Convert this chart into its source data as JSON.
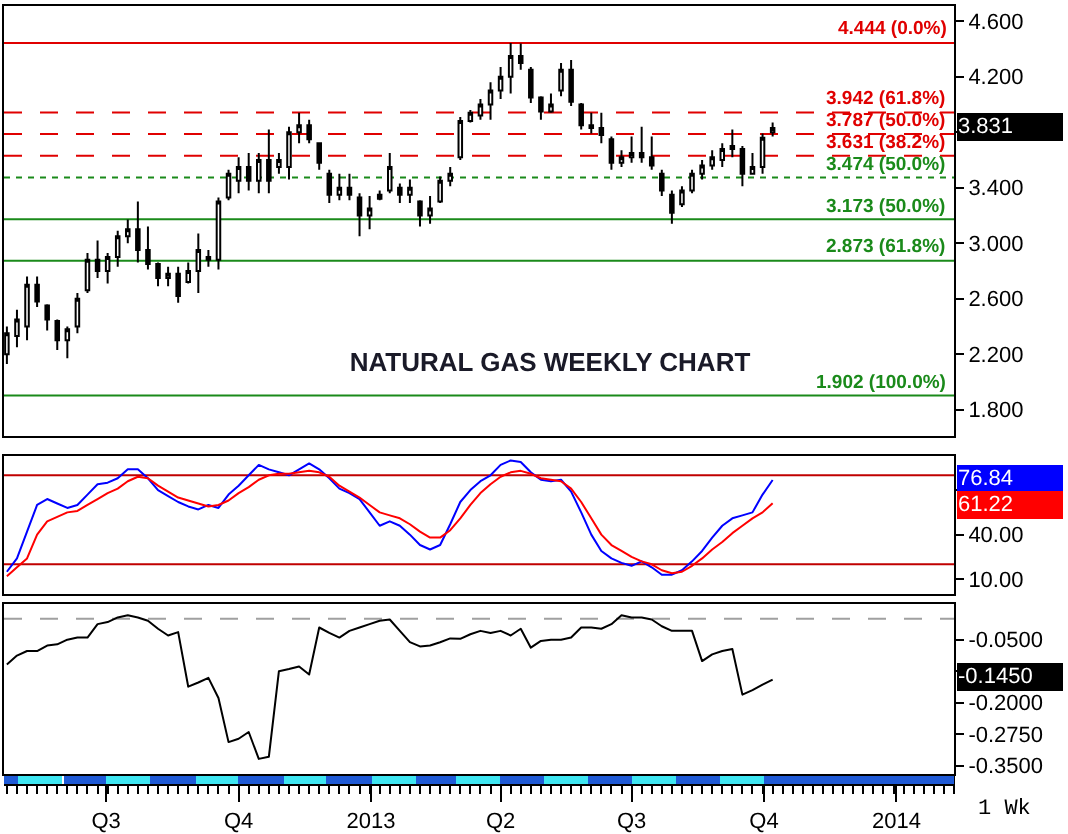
{
  "chart_data": [
    {
      "type": "candlestick",
      "title": "NATURAL GAS WEEKLY CHART",
      "color": "#000000",
      "x": [
        "2012-04-23",
        "2012-04-30",
        "2012-05-07",
        "2012-05-14",
        "2012-05-21",
        "2012-05-28",
        "2012-06-04",
        "2012-06-11",
        "2012-06-18",
        "2012-06-25",
        "2012-07-02",
        "2012-07-09",
        "2012-07-16",
        "2012-07-23",
        "2012-07-30",
        "2012-08-06",
        "2012-08-13",
        "2012-08-20",
        "2012-08-27",
        "2012-09-03",
        "2012-09-10",
        "2012-09-17",
        "2012-09-24",
        "2012-10-01",
        "2012-10-08",
        "2012-10-15",
        "2012-10-22",
        "2012-10-29",
        "2012-11-05",
        "2012-11-12",
        "2012-11-19",
        "2012-11-26",
        "2012-12-03",
        "2012-12-10",
        "2012-12-17",
        "2012-12-24",
        "2012-12-31",
        "2013-01-07",
        "2013-01-14",
        "2013-01-21",
        "2013-01-28",
        "2013-02-04",
        "2013-02-11",
        "2013-02-18",
        "2013-02-25",
        "2013-03-04",
        "2013-03-11",
        "2013-03-18",
        "2013-03-25",
        "2013-04-01",
        "2013-04-08",
        "2013-04-15",
        "2013-04-22",
        "2013-04-29",
        "2013-05-06",
        "2013-05-13",
        "2013-05-20",
        "2013-05-27",
        "2013-06-03",
        "2013-06-10",
        "2013-06-17",
        "2013-06-24",
        "2013-07-01",
        "2013-07-08",
        "2013-07-15",
        "2013-07-22",
        "2013-07-29",
        "2013-08-05",
        "2013-08-12",
        "2013-08-19",
        "2013-08-26",
        "2013-09-02",
        "2013-09-09",
        "2013-09-16",
        "2013-09-23",
        "2013-09-30",
        "2013-10-07"
      ],
      "ohlc": [
        [
          2.2,
          2.4,
          2.13,
          2.35
        ],
        [
          2.33,
          2.52,
          2.25,
          2.45
        ],
        [
          2.4,
          2.76,
          2.3,
          2.7
        ],
        [
          2.7,
          2.76,
          2.54,
          2.58
        ],
        [
          2.55,
          2.56,
          2.37,
          2.45
        ],
        [
          2.44,
          2.45,
          2.23,
          2.3
        ],
        [
          2.3,
          2.4,
          2.17,
          2.38
        ],
        [
          2.4,
          2.64,
          2.35,
          2.6
        ],
        [
          2.66,
          2.93,
          2.64,
          2.88
        ],
        [
          2.88,
          3.02,
          2.75,
          2.8
        ],
        [
          2.8,
          2.93,
          2.71,
          2.9
        ],
        [
          2.9,
          3.09,
          2.83,
          3.05
        ],
        [
          3.05,
          3.17,
          3.0,
          3.1
        ],
        [
          3.1,
          3.3,
          2.86,
          2.95
        ],
        [
          2.95,
          3.12,
          2.81,
          2.85
        ],
        [
          2.85,
          2.86,
          2.69,
          2.75
        ],
        [
          2.75,
          2.83,
          2.69,
          2.78
        ],
        [
          2.78,
          2.83,
          2.57,
          2.62
        ],
        [
          2.72,
          2.86,
          2.71,
          2.8
        ],
        [
          2.8,
          3.07,
          2.64,
          2.95
        ],
        [
          2.9,
          2.95,
          2.83,
          2.88
        ],
        [
          2.88,
          3.33,
          2.81,
          3.3
        ],
        [
          3.33,
          3.53,
          3.31,
          3.5
        ],
        [
          3.45,
          3.62,
          3.36,
          3.55
        ],
        [
          3.55,
          3.65,
          3.38,
          3.45
        ],
        [
          3.45,
          3.65,
          3.36,
          3.6
        ],
        [
          3.6,
          3.82,
          3.36,
          3.45
        ],
        [
          3.55,
          3.65,
          3.5,
          3.6
        ],
        [
          3.55,
          3.84,
          3.46,
          3.8
        ],
        [
          3.8,
          3.94,
          3.72,
          3.85
        ],
        [
          3.85,
          3.89,
          3.72,
          3.75
        ],
        [
          3.72,
          3.72,
          3.53,
          3.58
        ],
        [
          3.5,
          3.53,
          3.29,
          3.35
        ],
        [
          3.35,
          3.5,
          3.31,
          3.4
        ],
        [
          3.4,
          3.5,
          3.31,
          3.35
        ],
        [
          3.33,
          3.36,
          3.05,
          3.2
        ],
        [
          3.2,
          3.34,
          3.1,
          3.25
        ],
        [
          3.32,
          3.38,
          3.31,
          3.35
        ],
        [
          3.38,
          3.65,
          3.36,
          3.55
        ],
        [
          3.4,
          3.43,
          3.29,
          3.35
        ],
        [
          3.35,
          3.46,
          3.29,
          3.4
        ],
        [
          3.3,
          3.31,
          3.12,
          3.2
        ],
        [
          3.2,
          3.34,
          3.14,
          3.25
        ],
        [
          3.3,
          3.48,
          3.29,
          3.45
        ],
        [
          3.45,
          3.55,
          3.41,
          3.5
        ],
        [
          3.62,
          3.91,
          3.6,
          3.88
        ],
        [
          3.88,
          3.96,
          3.87,
          3.94
        ],
        [
          3.92,
          4.04,
          3.89,
          4.0
        ],
        [
          4.0,
          4.16,
          3.89,
          4.1
        ],
        [
          4.1,
          4.27,
          4.04,
          4.2
        ],
        [
          4.2,
          4.444,
          4.08,
          4.35
        ],
        [
          4.35,
          4.44,
          4.25,
          4.3
        ],
        [
          4.25,
          4.27,
          4.01,
          4.05
        ],
        [
          4.05,
          4.06,
          3.89,
          3.95
        ],
        [
          3.95,
          4.08,
          3.94,
          4.0
        ],
        [
          4.1,
          4.3,
          4.06,
          4.25
        ],
        [
          4.25,
          4.32,
          3.99,
          4.02
        ],
        [
          4.0,
          4.01,
          3.82,
          3.85
        ],
        [
          3.85,
          3.94,
          3.79,
          3.83
        ],
        [
          3.83,
          3.94,
          3.72,
          3.78
        ],
        [
          3.75,
          3.77,
          3.53,
          3.58
        ],
        [
          3.58,
          3.67,
          3.55,
          3.62
        ],
        [
          3.62,
          3.77,
          3.58,
          3.65
        ],
        [
          3.65,
          3.84,
          3.58,
          3.62
        ],
        [
          3.62,
          3.77,
          3.53,
          3.56
        ],
        [
          3.5,
          3.53,
          3.34,
          3.38
        ],
        [
          3.35,
          3.38,
          3.14,
          3.22
        ],
        [
          3.28,
          3.41,
          3.26,
          3.38
        ],
        [
          3.38,
          3.53,
          3.36,
          3.5
        ],
        [
          3.5,
          3.6,
          3.46,
          3.56
        ],
        [
          3.56,
          3.67,
          3.53,
          3.62
        ],
        [
          3.6,
          3.72,
          3.55,
          3.68
        ],
        [
          3.68,
          3.82,
          3.62,
          3.7
        ],
        [
          3.68,
          3.7,
          3.41,
          3.5
        ],
        [
          3.5,
          3.65,
          3.5,
          3.55
        ],
        [
          3.55,
          3.79,
          3.5,
          3.76
        ],
        [
          3.8,
          3.87,
          3.77,
          3.831
        ]
      ],
      "xlim": [
        "2012-04-21",
        "2014-02-10"
      ],
      "ylim": [
        1.61,
        4.71
      ],
      "yticks": [
        {
          "value": 1.8,
          "label": "1.800"
        },
        {
          "value": 2.2,
          "label": "2.200"
        },
        {
          "value": 2.6,
          "label": "2.600"
        },
        {
          "value": 3.0,
          "label": "3.000"
        },
        {
          "value": 3.4,
          "label": "3.400"
        },
        {
          "value": 3.8,
          "label": null
        },
        {
          "value": 4.2,
          "label": "4.200"
        },
        {
          "value": 4.6,
          "label": "4.600"
        }
      ],
      "tick_labels": "y",
      "ref_lines": [
        {
          "axis": "y",
          "value": 4.444,
          "label": "4.444 (0.0%)",
          "color": "#e00000"
        },
        {
          "axis": "y",
          "value": 3.942,
          "label": "3.942 (61.8%)",
          "color": "#e00000",
          "line_style": "dashed"
        },
        {
          "axis": "y",
          "value": 3.787,
          "label": "3.787 (50.0%)",
          "color": "#e00000",
          "line_style": "dashed"
        },
        {
          "axis": "y",
          "value": 3.631,
          "label": "3.631 (38.2%)",
          "color": "#e00000",
          "line_style": "dashed"
        },
        {
          "axis": "y",
          "value": 3.474,
          "label": "3.474 (50.0%)",
          "color": "#1a8a1a",
          "line_style": "dotted"
        },
        {
          "axis": "y",
          "value": 3.173,
          "label": "3.173 (50.0%)",
          "color": "#1a8a1a"
        },
        {
          "axis": "y",
          "value": 2.873,
          "label": "2.873 (61.8%)",
          "color": "#1a8a1a"
        },
        {
          "axis": "y",
          "value": 1.902,
          "label": "1.902 (100.0%)",
          "color": "#1a8a1a"
        }
      ],
      "annotations": [
        "3.831"
      ]
    },
    {
      "type": "line",
      "x": [
        "2012-04-23",
        "2012-04-30",
        "2012-05-07",
        "2012-05-14",
        "2012-05-21",
        "2012-05-28",
        "2012-06-04",
        "2012-06-11",
        "2012-06-18",
        "2012-06-25",
        "2012-07-02",
        "2012-07-09",
        "2012-07-16",
        "2012-07-23",
        "2012-07-30",
        "2012-08-06",
        "2012-08-13",
        "2012-08-20",
        "2012-08-27",
        "2012-09-03",
        "2012-09-10",
        "2012-09-17",
        "2012-09-24",
        "2012-10-01",
        "2012-10-08",
        "2012-10-15",
        "2012-10-22",
        "2012-10-29",
        "2012-11-05",
        "2012-11-12",
        "2012-11-19",
        "2012-11-26",
        "2012-12-03",
        "2012-12-10",
        "2012-12-17",
        "2012-12-24",
        "2012-12-31",
        "2013-01-07",
        "2013-01-14",
        "2013-01-21",
        "2013-01-28",
        "2013-02-04",
        "2013-02-11",
        "2013-02-18",
        "2013-02-25",
        "2013-03-04",
        "2013-03-11",
        "2013-03-18",
        "2013-03-25",
        "2013-04-01",
        "2013-04-08",
        "2013-04-15",
        "2013-04-22",
        "2013-04-29",
        "2013-05-06",
        "2013-05-13",
        "2013-05-20",
        "2013-05-27",
        "2013-06-03",
        "2013-06-10",
        "2013-06-17",
        "2013-06-24",
        "2013-07-01",
        "2013-07-08",
        "2013-07-15",
        "2013-07-22",
        "2013-07-29",
        "2013-08-05",
        "2013-08-12",
        "2013-08-19",
        "2013-08-26",
        "2013-09-02",
        "2013-09-09",
        "2013-09-16",
        "2013-09-23",
        "2013-09-30",
        "2013-10-07"
      ],
      "series": [
        {
          "color": "#0000ff",
          "values": [
            15,
            24,
            42,
            60,
            64,
            61,
            58,
            60,
            67,
            74,
            75,
            78,
            84,
            84,
            78,
            70,
            66,
            62,
            59,
            57,
            60,
            58,
            67,
            73,
            80,
            87,
            84,
            82,
            80,
            84,
            88,
            84,
            78,
            71,
            68,
            64,
            55,
            46,
            49,
            46,
            40,
            33,
            30,
            33,
            47,
            62,
            70,
            76,
            80,
            87,
            90,
            89,
            82,
            77,
            76,
            77,
            69,
            55,
            40,
            29,
            24,
            21,
            19,
            22,
            18,
            13,
            13,
            16,
            22,
            29,
            38,
            46,
            51,
            53,
            55,
            67,
            76.84
          ]
        },
        {
          "color": "#ff0000",
          "values": [
            12,
            18,
            24,
            40,
            49,
            52,
            55,
            56,
            60,
            64,
            68,
            71,
            76,
            79,
            78,
            73,
            69,
            65,
            63,
            61,
            59,
            60,
            63,
            68,
            72,
            77,
            80,
            81,
            81,
            82,
            83,
            82,
            79,
            73,
            69,
            65,
            60,
            55,
            53,
            51,
            47,
            42,
            38,
            38,
            43,
            51,
            60,
            68,
            74,
            79,
            82,
            83,
            81,
            78,
            77,
            76,
            71,
            62,
            51,
            40,
            33,
            29,
            25,
            22,
            20,
            16,
            14,
            15,
            19,
            24,
            30,
            35,
            41,
            46,
            51,
            55,
            61.22
          ]
        }
      ],
      "xlim": [
        "2012-04-21",
        "2014-02-10"
      ],
      "ylim": [
        0,
        93
      ],
      "yticks": [
        {
          "value": 10,
          "label": "10.00"
        },
        {
          "value": 40,
          "label": "40.00"
        },
        {
          "value": 70,
          "label": null
        }
      ],
      "tick_labels": "y",
      "ref_lines": [
        {
          "axis": "y",
          "value": 80,
          "color": "#c00000"
        },
        {
          "axis": "y",
          "value": 20,
          "color": "#c00000"
        }
      ],
      "annotations": [
        "76.84",
        "61.22"
      ]
    },
    {
      "type": "line",
      "color": "#000000",
      "x": [
        "2012-04-23",
        "2012-04-30",
        "2012-05-07",
        "2012-05-14",
        "2012-05-21",
        "2012-05-28",
        "2012-06-04",
        "2012-06-11",
        "2012-06-18",
        "2012-06-25",
        "2012-07-02",
        "2012-07-09",
        "2012-07-16",
        "2012-07-23",
        "2012-07-30",
        "2012-08-06",
        "2012-08-13",
        "2012-08-20",
        "2012-08-27",
        "2012-09-03",
        "2012-09-10",
        "2012-09-17",
        "2012-09-24",
        "2012-10-01",
        "2012-10-08",
        "2012-10-15",
        "2012-10-22",
        "2012-10-29",
        "2012-11-05",
        "2012-11-12",
        "2012-11-19",
        "2012-11-26",
        "2012-12-03",
        "2012-12-10",
        "2012-12-17",
        "2012-12-24",
        "2012-12-31",
        "2013-01-07",
        "2013-01-14",
        "2013-01-21",
        "2013-01-28",
        "2013-02-04",
        "2013-02-11",
        "2013-02-18",
        "2013-02-25",
        "2013-03-04",
        "2013-03-11",
        "2013-03-18",
        "2013-03-25",
        "2013-04-01",
        "2013-04-08",
        "2013-04-15",
        "2013-04-22",
        "2013-04-29",
        "2013-05-06",
        "2013-05-13",
        "2013-05-20",
        "2013-05-27",
        "2013-06-03",
        "2013-06-10",
        "2013-06-17",
        "2013-06-24",
        "2013-07-01",
        "2013-07-08",
        "2013-07-15",
        "2013-07-22",
        "2013-07-29",
        "2013-08-05",
        "2013-08-12",
        "2013-08-19",
        "2013-08-26",
        "2013-09-02",
        "2013-09-09",
        "2013-09-16",
        "2013-09-23",
        "2013-09-30",
        "2013-10-07"
      ],
      "values": [
        -0.109,
        -0.088,
        -0.077,
        -0.077,
        -0.064,
        -0.061,
        -0.05,
        -0.045,
        -0.045,
        -0.013,
        -0.008,
        0.003,
        0.008,
        0.003,
        -0.005,
        -0.024,
        -0.04,
        -0.032,
        -0.162,
        -0.152,
        -0.141,
        -0.189,
        -0.294,
        -0.286,
        -0.27,
        -0.334,
        -0.329,
        -0.125,
        -0.12,
        -0.114,
        -0.133,
        -0.021,
        -0.034,
        -0.045,
        -0.029,
        -0.021,
        -0.013,
        -0.005,
        -0.002,
        -0.029,
        -0.056,
        -0.066,
        -0.064,
        -0.056,
        -0.047,
        -0.048,
        -0.037,
        -0.029,
        -0.034,
        -0.029,
        -0.04,
        -0.024,
        -0.069,
        -0.053,
        -0.05,
        -0.05,
        -0.045,
        -0.021,
        -0.021,
        -0.024,
        -0.013,
        0.008,
        0.003,
        0.003,
        -0.002,
        -0.018,
        -0.029,
        -0.029,
        -0.029,
        -0.101,
        -0.085,
        -0.077,
        -0.072,
        -0.181,
        -0.17,
        -0.157,
        -0.145
      ],
      "xlim": [
        "2012-04-21",
        "2014-02-10"
      ],
      "ylim": [
        -0.37,
        0.035
      ],
      "yticks": [
        {
          "value": -0.05,
          "label": "-0.0500"
        },
        {
          "value": -0.125,
          "label": null
        },
        {
          "value": -0.2,
          "label": "-0.2000"
        },
        {
          "value": -0.275,
          "label": "-0.2750"
        },
        {
          "value": -0.35,
          "label": "-0.3500"
        }
      ],
      "xticks": [
        {
          "value": "2012-07-01",
          "label": "Q3"
        },
        {
          "value": "2012-10-01",
          "label": "Q4"
        },
        {
          "value": "2013-01-01",
          "label": "2013"
        },
        {
          "value": "2013-04-01",
          "label": "Q2"
        },
        {
          "value": "2013-07-01",
          "label": "Q3"
        },
        {
          "value": "2013-10-01",
          "label": "Q4"
        },
        {
          "value": "2014-01-01",
          "label": "2014"
        }
      ],
      "ref_lines": [
        {
          "axis": "y",
          "value": 0,
          "color": "#a0a0a0",
          "line_style": "dashed"
        }
      ],
      "annotations": [
        "-0.1450",
        "1 Wk"
      ]
    }
  ]
}
